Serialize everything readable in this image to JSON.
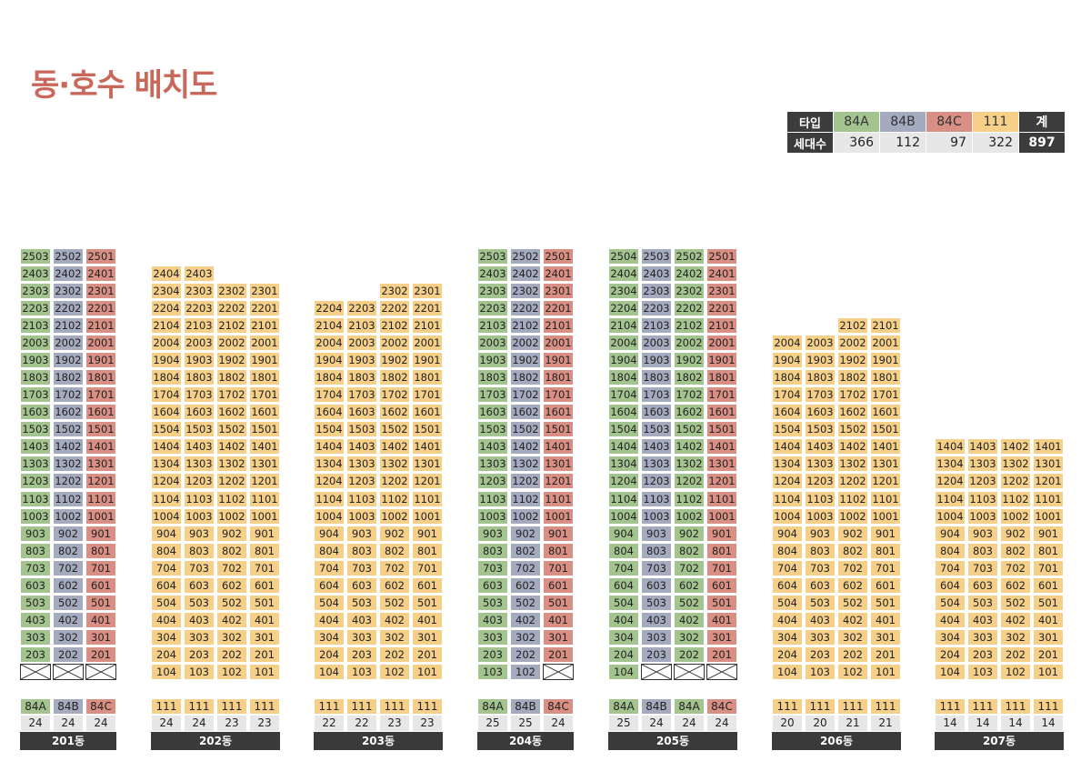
{
  "title": "동·호수 배치도",
  "colors": {
    "84A": "#a3c48f",
    "84B": "#a4abbf",
    "84C": "#d98f84",
    "111": "#f6d089"
  },
  "legend": {
    "type_header": "타입",
    "count_header": "세대수",
    "total_label": "계",
    "total_count": "897",
    "types": [
      {
        "name": "84A",
        "count": "366",
        "color": "#a3c48f"
      },
      {
        "name": "84B",
        "count": "112",
        "color": "#a4abbf"
      },
      {
        "name": "84C",
        "count": "97",
        "color": "#d98f84"
      },
      {
        "name": "111",
        "count": "322",
        "color": "#f6d089"
      }
    ]
  },
  "buildings": [
    {
      "name": "201동",
      "line_types": [
        "84A",
        "84B",
        "84C"
      ],
      "line_numbers": [
        "03",
        "02",
        "01"
      ],
      "line_top_floors": [
        25,
        25,
        25
      ],
      "line_bottom_floors": [
        2,
        2,
        2
      ],
      "empty_floor1_lines": [
        0,
        1,
        2
      ],
      "totals": [
        {
          "type": "84A",
          "count": "24"
        },
        {
          "type": "84B",
          "count": "24"
        },
        {
          "type": "84C",
          "count": "24"
        }
      ]
    },
    {
      "name": "202동",
      "line_types": [
        "111",
        "111",
        "111",
        "111"
      ],
      "line_numbers": [
        "04",
        "03",
        "02",
        "01"
      ],
      "line_top_floors": [
        24,
        24,
        23,
        23
      ],
      "line_bottom_floors": [
        1,
        1,
        1,
        1
      ],
      "empty_floor1_lines": [],
      "totals": [
        {
          "type": "111",
          "count": "24"
        },
        {
          "type": "111",
          "count": "24"
        },
        {
          "type": "111",
          "count": "23"
        },
        {
          "type": "111",
          "count": "23"
        }
      ]
    },
    {
      "name": "203동",
      "line_types": [
        "111",
        "111",
        "111",
        "111"
      ],
      "line_numbers": [
        "04",
        "03",
        "02",
        "01"
      ],
      "line_top_floors": [
        22,
        22,
        23,
        23
      ],
      "line_bottom_floors": [
        1,
        1,
        1,
        1
      ],
      "empty_floor1_lines": [],
      "totals": [
        {
          "type": "111",
          "count": "22"
        },
        {
          "type": "111",
          "count": "22"
        },
        {
          "type": "111",
          "count": "23"
        },
        {
          "type": "111",
          "count": "23"
        }
      ]
    },
    {
      "name": "204동",
      "line_types": [
        "84A",
        "84B",
        "84C"
      ],
      "line_numbers": [
        "03",
        "02",
        "01"
      ],
      "line_top_floors": [
        25,
        25,
        25
      ],
      "line_bottom_floors": [
        1,
        1,
        2
      ],
      "empty_floor1_lines": [
        2
      ],
      "totals": [
        {
          "type": "84A",
          "count": "25"
        },
        {
          "type": "84B",
          "count": "25"
        },
        {
          "type": "84C",
          "count": "24"
        }
      ]
    },
    {
      "name": "205동",
      "line_types": [
        "84A",
        "84B",
        "84A",
        "84C"
      ],
      "line_numbers": [
        "04",
        "03",
        "02",
        "01"
      ],
      "line_top_floors": [
        25,
        25,
        25,
        25
      ],
      "line_bottom_floors": [
        1,
        2,
        2,
        2
      ],
      "empty_floor1_lines": [
        1,
        2,
        3
      ],
      "totals": [
        {
          "type": "84A",
          "count": "25"
        },
        {
          "type": "84B",
          "count": "24"
        },
        {
          "type": "84A",
          "count": "24"
        },
        {
          "type": "84C",
          "count": "24"
        }
      ]
    },
    {
      "name": "206동",
      "line_types": [
        "111",
        "111",
        "111",
        "111"
      ],
      "line_numbers": [
        "04",
        "03",
        "02",
        "01"
      ],
      "line_top_floors": [
        20,
        20,
        21,
        21
      ],
      "line_bottom_floors": [
        1,
        1,
        1,
        1
      ],
      "empty_floor1_lines": [],
      "totals": [
        {
          "type": "111",
          "count": "20"
        },
        {
          "type": "111",
          "count": "20"
        },
        {
          "type": "111",
          "count": "21"
        },
        {
          "type": "111",
          "count": "21"
        }
      ]
    },
    {
      "name": "207동",
      "line_types": [
        "111",
        "111",
        "111",
        "111"
      ],
      "line_numbers": [
        "04",
        "03",
        "02",
        "01"
      ],
      "line_top_floors": [
        14,
        14,
        14,
        14
      ],
      "line_bottom_floors": [
        1,
        1,
        1,
        1
      ],
      "empty_floor1_lines": [],
      "totals": [
        {
          "type": "111",
          "count": "14"
        },
        {
          "type": "111",
          "count": "14"
        },
        {
          "type": "111",
          "count": "14"
        },
        {
          "type": "111",
          "count": "14"
        }
      ]
    }
  ]
}
